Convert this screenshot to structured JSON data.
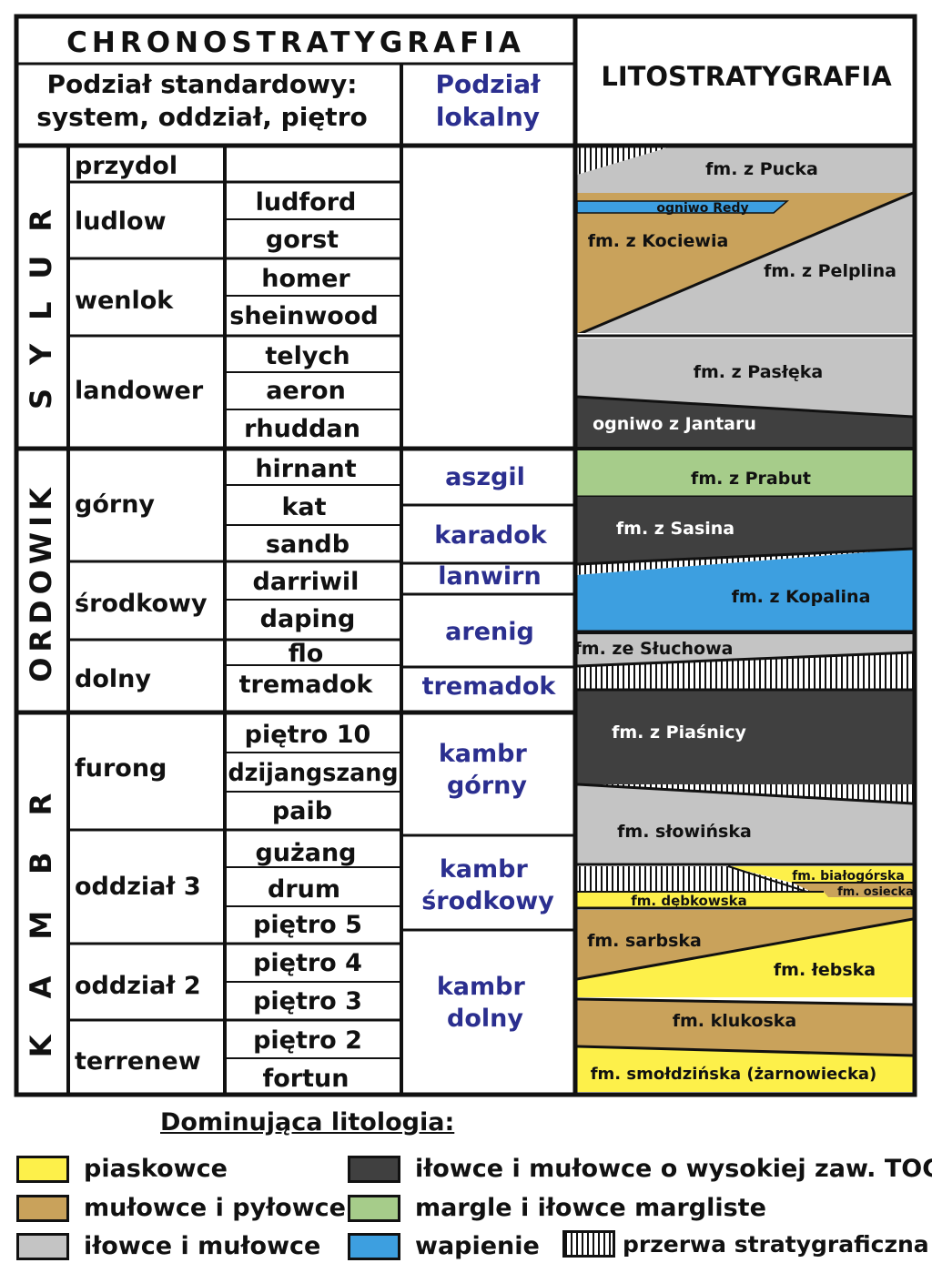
{
  "header": {
    "chrono": "CHRONOSTRATYGRAFIA",
    "standard_line1": "Podział standardowy:",
    "standard_line2": "system, oddział, piętro",
    "local_line1": "Podział",
    "local_line2": "lokalny",
    "lito": "LITOSTRATYGRAFIA"
  },
  "systems": [
    "SYLUR",
    "ORDOWIK",
    "KAMBR"
  ],
  "series": [
    "przydol",
    "ludlow",
    "wenlok",
    "landower",
    "górny",
    "środkowy",
    "dolny",
    "furong",
    "oddział 3",
    "oddział 2",
    "terrenew"
  ],
  "stages": [
    "ludford",
    "gorst",
    "homer",
    "sheinwood",
    "telych",
    "aeron",
    "rhuddan",
    "hirnant",
    "kat",
    "sandb",
    "darriwil",
    "daping",
    "flo",
    "tremadok",
    "piętro 10",
    "dzijangszang",
    "paib",
    "gużang",
    "drum",
    "piętro 5",
    "piętro 4",
    "piętro 3",
    "piętro 2",
    "fortun"
  ],
  "local": [
    "aszgil",
    "karadok",
    "lanwirn",
    "arenig",
    "tremadok",
    "kambr górny",
    "kambr środkowy",
    "kambr dolny"
  ],
  "formations": [
    "fm. z Pucka",
    "ogniwo Redy",
    "fm. z Kociewia",
    "fm. z Pelplina",
    "fm. z Pasłęka",
    "ogniwo z Jantaru",
    "fm. z Prabut",
    "fm. z Sasina",
    "fm. z Kopalina",
    "fm. ze Słuchowa",
    "fm. z Piaśnicy",
    "fm. słowińska",
    "fm. białogórska",
    "fm. osiecka",
    "fm. dębkowska",
    "fm. sarbska",
    "fm. łebska",
    "fm. klukoska",
    "fm. smołdzińska (żarnowiecka)"
  ],
  "colors": {
    "sandstone": "#fdf04a",
    "mudstone_silt": "#c9a25b",
    "claystone": "#c4c4c4",
    "toc": "#404040",
    "marl": "#a6cc8a",
    "limestone": "#3d9fe0"
  },
  "legend": {
    "title": "Dominująca litologia:",
    "items": [
      "piaskowce",
      "mułowce i pyłowce",
      "iłowce i mułowce",
      "iłowce i mułowce o wysokiej zaw. TOC",
      "margle i iłowce margliste",
      "wapienie",
      "przerwa stratygraficzna"
    ]
  }
}
